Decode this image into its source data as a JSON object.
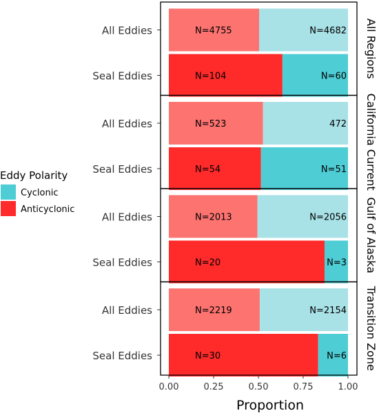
{
  "chart_data": {
    "type": "bar",
    "orientation": "horizontal",
    "stacked": true,
    "xlabel": "Proportion",
    "xlim": [
      0,
      1
    ],
    "xticks": [
      "0.00",
      "0.25",
      "0.50",
      "0.75",
      "1.00"
    ],
    "legend": {
      "title": "Eddy Polarity",
      "position": "left",
      "entries": [
        {
          "label": "Cyclonic",
          "color": "#4ecdd4"
        },
        {
          "label": "Anticyclonic",
          "color": "#ff2a2a"
        }
      ]
    },
    "colors": {
      "anticyclonic_all": "#fc7370",
      "cyclonic_all": "#a8e1e6",
      "anticyclonic_seal": "#ff2a2a",
      "cyclonic_seal": "#4ecdd4"
    },
    "series": [
      {
        "name": "Anticyclonic"
      },
      {
        "name": "Cyclonic"
      }
    ],
    "panels": [
      {
        "region": "All Regions",
        "rows": [
          {
            "category": "All Eddies",
            "anticyclonic": 4755,
            "cyclonic": 4682,
            "anticyclonic_label": "N=4755",
            "cyclonic_label": "N=4682"
          },
          {
            "category": "Seal Eddies",
            "anticyclonic": 104,
            "cyclonic": 60,
            "anticyclonic_label": "N=104",
            "cyclonic_label": "N=60"
          }
        ]
      },
      {
        "region": "California Current",
        "rows": [
          {
            "category": "All Eddies",
            "anticyclonic": 523,
            "cyclonic": 472,
            "anticyclonic_label": "N=523",
            "cyclonic_label": "472"
          },
          {
            "category": "Seal Eddies",
            "anticyclonic": 54,
            "cyclonic": 51,
            "anticyclonic_label": "N=54",
            "cyclonic_label": "N=51"
          }
        ]
      },
      {
        "region": "Gulf of Alaska",
        "rows": [
          {
            "category": "All Eddies",
            "anticyclonic": 2013,
            "cyclonic": 2056,
            "anticyclonic_label": "N=2013",
            "cyclonic_label": "N=2056"
          },
          {
            "category": "Seal Eddies",
            "anticyclonic": 20,
            "cyclonic": 3,
            "anticyclonic_label": "N=20",
            "cyclonic_label": "N=3"
          }
        ]
      },
      {
        "region": "Transition Zone",
        "rows": [
          {
            "category": "All Eddies",
            "anticyclonic": 2219,
            "cyclonic": 2154,
            "anticyclonic_label": "N=2219",
            "cyclonic_label": "N=2154"
          },
          {
            "category": "Seal Eddies",
            "anticyclonic": 30,
            "cyclonic": 6,
            "anticyclonic_label": "N=30",
            "cyclonic_label": "N=6"
          }
        ]
      }
    ]
  }
}
